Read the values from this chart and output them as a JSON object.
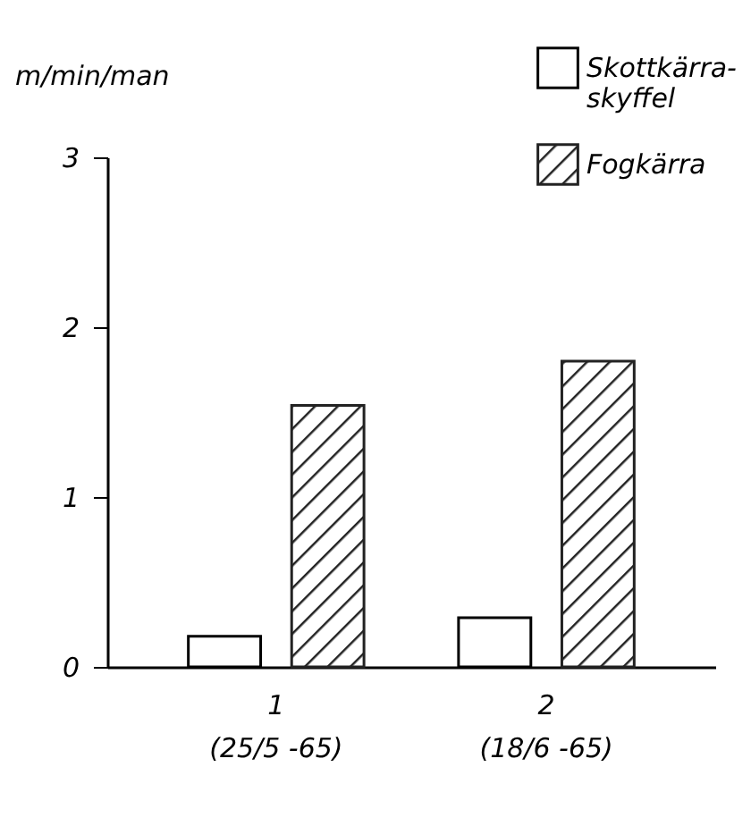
{
  "chart_data": {
    "type": "bar",
    "ylabel": "m/min/man",
    "categories": [
      "1\n(25/5 -65)",
      "2\n(18/6 -65)"
    ],
    "series": [
      {
        "name": "Skottkärra-\nskyffel",
        "color": "#ffffff",
        "values": [
          0.18,
          0.29
        ]
      },
      {
        "name": "Fogkärra",
        "color": "#222222",
        "values": [
          1.54,
          1.8
        ]
      }
    ],
    "ylim": [
      0,
      3
    ],
    "yticks": [
      0,
      1,
      2,
      3
    ],
    "grid": false,
    "legend": "top right"
  }
}
